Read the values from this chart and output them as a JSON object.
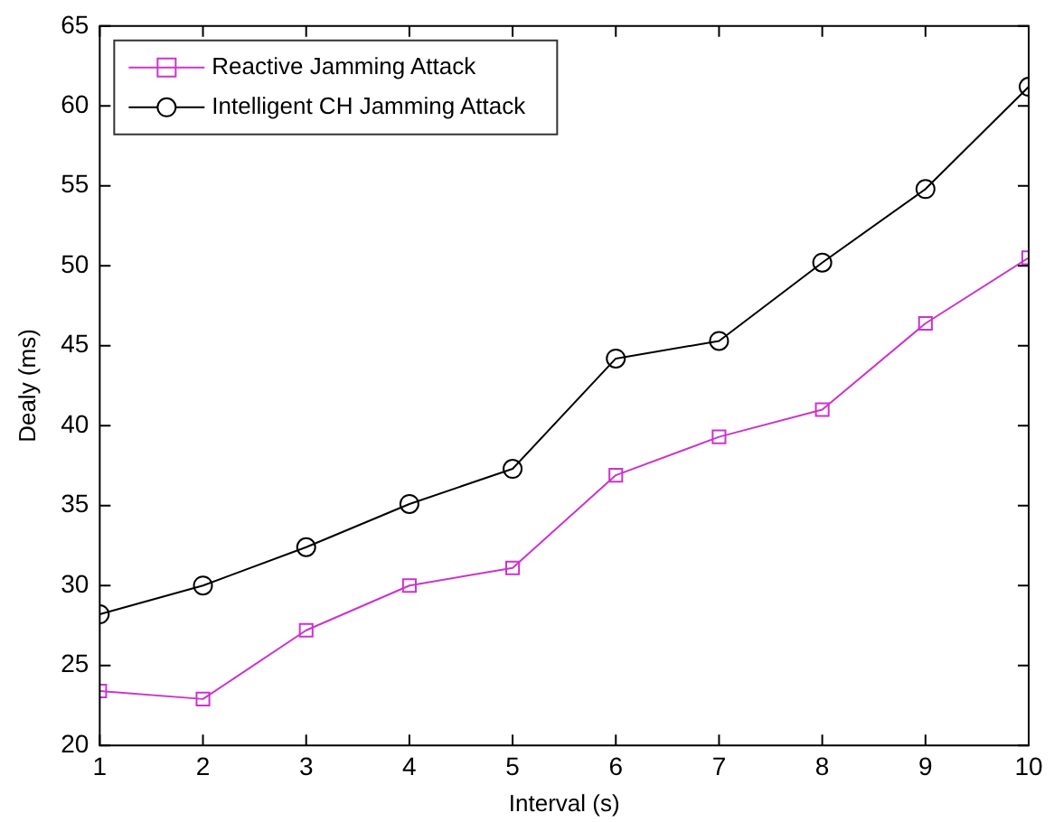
{
  "chart_data": {
    "type": "line",
    "xlabel": "Interval (s)",
    "ylabel": "Dealy (ms)",
    "x": [
      1,
      2,
      3,
      4,
      5,
      6,
      7,
      8,
      9,
      10
    ],
    "xlim": [
      1,
      10
    ],
    "xticks": [
      1,
      2,
      3,
      4,
      5,
      6,
      7,
      8,
      9,
      10
    ],
    "ylim": [
      20,
      65
    ],
    "yticks": [
      20,
      25,
      30,
      35,
      40,
      45,
      50,
      55,
      60,
      65
    ],
    "grid": false,
    "legend": "top left",
    "series": [
      {
        "name": "Reactive Jamming Attack",
        "color": "#cc33cc",
        "marker": "square",
        "values": [
          23.4,
          22.9,
          27.2,
          30.0,
          31.1,
          36.9,
          39.3,
          41.0,
          46.4,
          50.5
        ]
      },
      {
        "name": "Intelligent CH Jamming Attack",
        "color": "#000000",
        "marker": "circle",
        "values": [
          28.2,
          30.0,
          32.4,
          35.1,
          37.3,
          44.2,
          45.3,
          50.2,
          54.8,
          61.2
        ]
      }
    ]
  }
}
